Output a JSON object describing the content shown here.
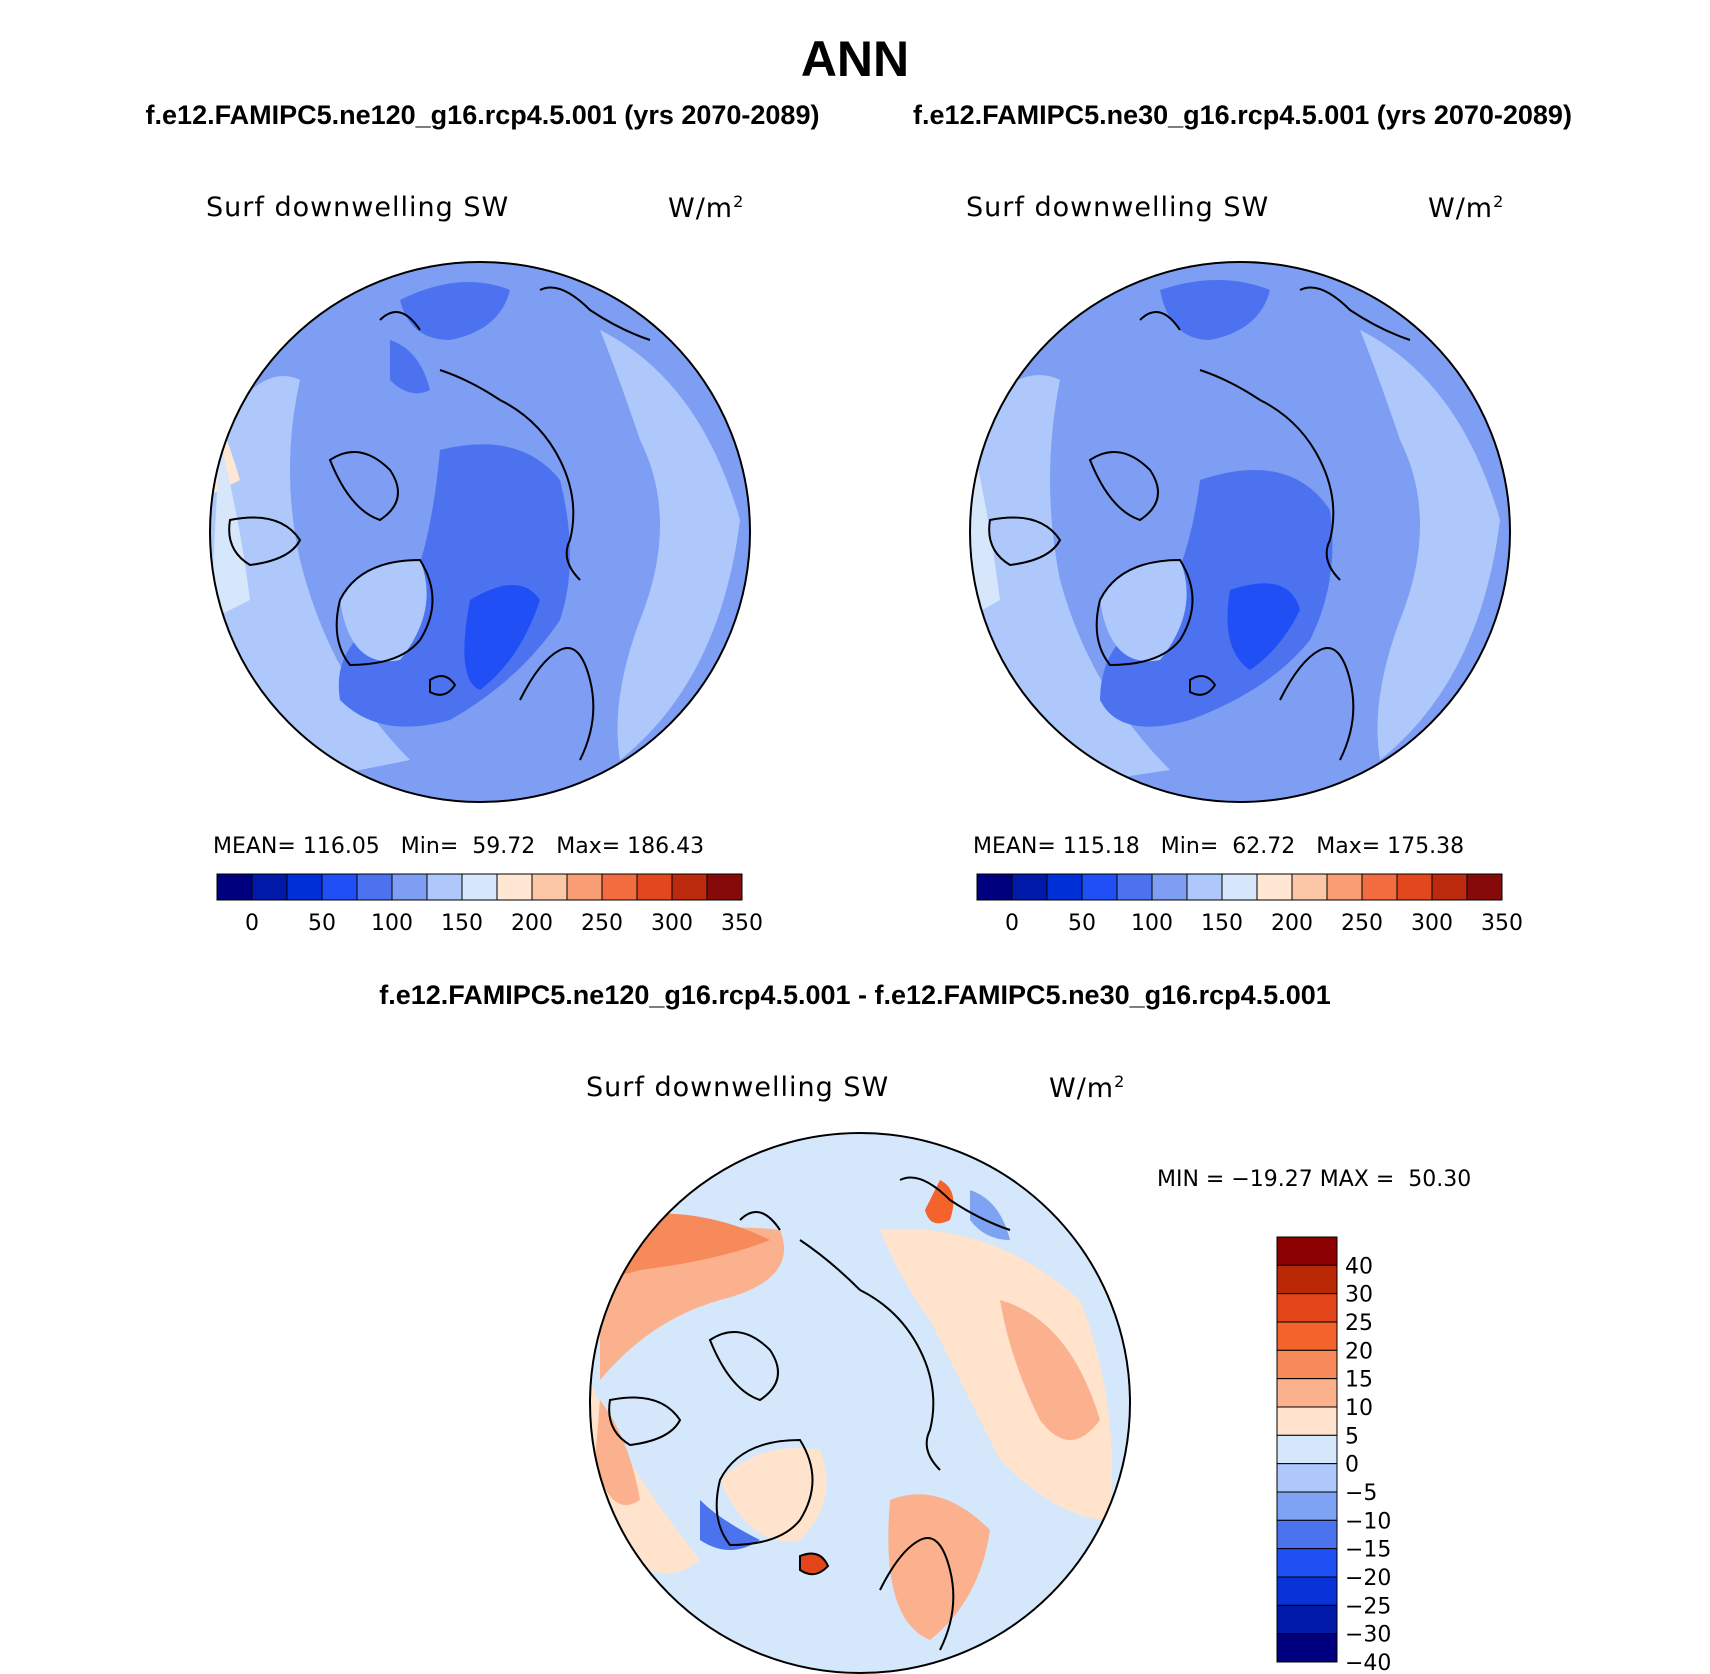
{
  "title": "ANN",
  "panels": [
    {
      "case_title": "f.e12.FAMIPC5.ne120_g16.rcp4.5.001 (yrs 2070-2089)",
      "variable": "Surf downwelling SW",
      "units": "W/m",
      "units_exp": "2",
      "mean_label": "MEAN=",
      "mean": "116.05",
      "min_label": "Min=",
      "min": "59.72",
      "max_label": "Max=",
      "max": "186.43"
    },
    {
      "case_title": "f.e12.FAMIPC5.ne30_g16.rcp4.5.001 (yrs 2070-2089)",
      "variable": "Surf downwelling SW",
      "units": "W/m",
      "units_exp": "2",
      "mean_label": "MEAN=",
      "mean": "115.18",
      "min_label": "Min=",
      "min": "62.72",
      "max_label": "Max=",
      "max": "175.38"
    }
  ],
  "diff": {
    "title": "f.e12.FAMIPC5.ne120_g16.rcp4.5.001 - f.e12.FAMIPC5.ne30_g16.rcp4.5.001",
    "variable": "Surf downwelling SW",
    "units": "W/m",
    "units_exp": "2",
    "minmax": "MIN = −19.27 MAX =  50.30"
  },
  "colorbar_abs": {
    "colors": [
      "#00007f",
      "#0019a8",
      "#0031d8",
      "#1f4ff5",
      "#4c72f0",
      "#7d9ef2",
      "#aec8fc",
      "#d6e6fb",
      "#ffe7d4",
      "#fcc7a7",
      "#f99d74",
      "#f26c3f",
      "#e2471d",
      "#bb2a0d",
      "#840b09"
    ],
    "labels": [
      "0",
      "50",
      "100",
      "150",
      "200",
      "250",
      "300",
      "350"
    ]
  },
  "colorbar_diff": {
    "colors": [
      "#8b0000",
      "#ba2806",
      "#e24519",
      "#f4632b",
      "#f78a5a",
      "#fbb18d",
      "#ffe3cd",
      "#d5e7fb",
      "#aec8fc",
      "#7da3f2",
      "#4c73ee",
      "#1f50f4",
      "#0933d8",
      "#0019a8",
      "#00007f"
    ],
    "labels": [
      "40",
      "30",
      "25",
      "20",
      "15",
      "10",
      "5",
      "0",
      "−5",
      "−10",
      "−15",
      "−20",
      "−25",
      "−30",
      "−40"
    ]
  }
}
